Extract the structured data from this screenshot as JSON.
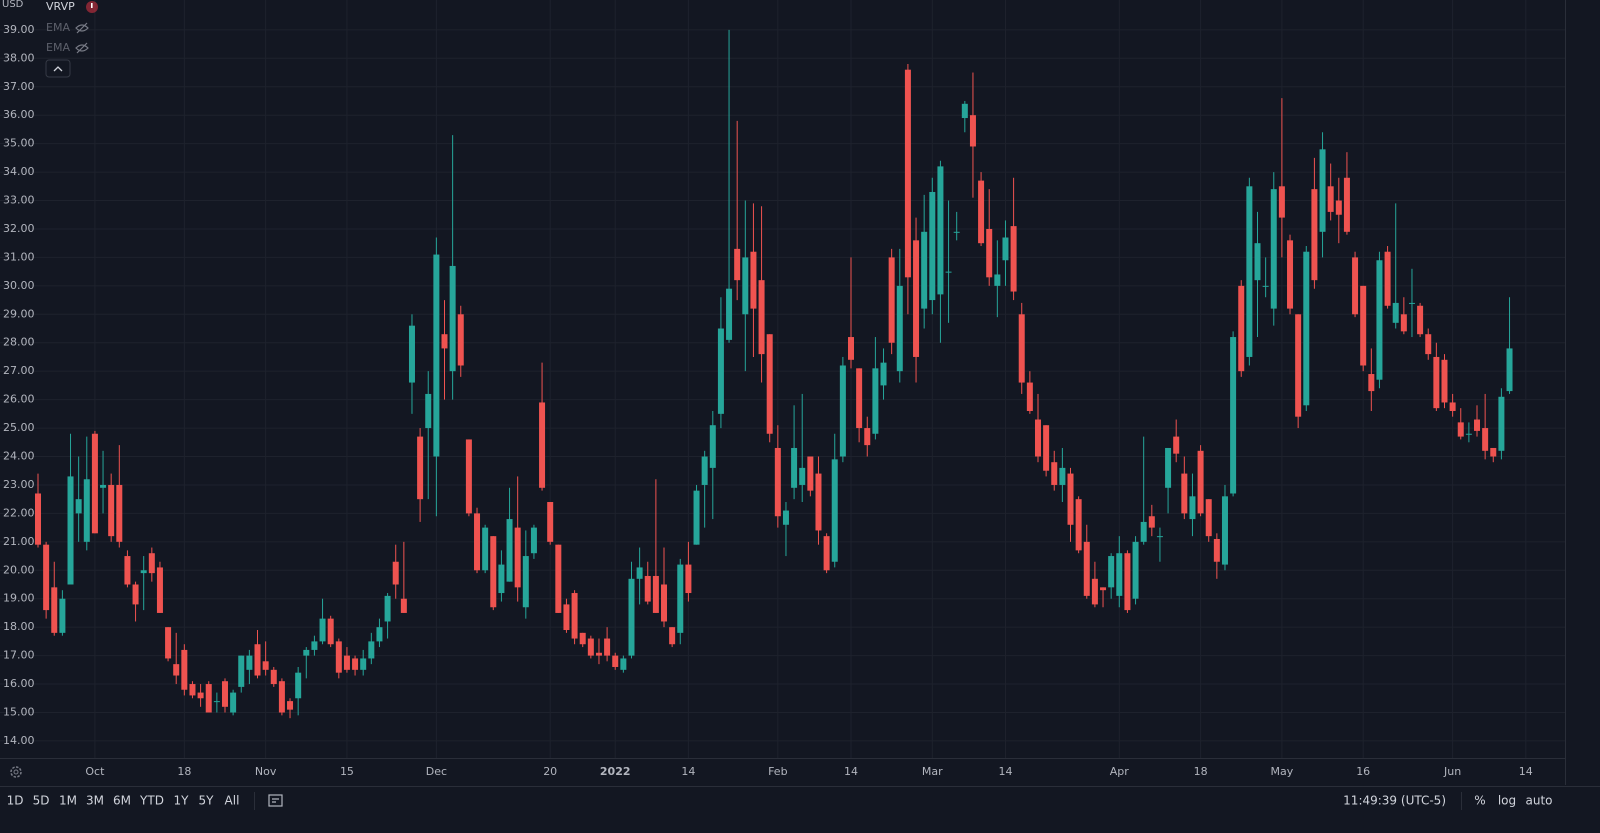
{
  "currency": "USD",
  "indicators": [
    "VRVP",
    "EMA",
    "EMA"
  ],
  "toolbar": {
    "ranges": [
      "1D",
      "5D",
      "1M",
      "3M",
      "6M",
      "YTD",
      "1Y",
      "5Y",
      "All"
    ],
    "clock": "11:49:39 (UTC-5)",
    "scale_buttons": [
      "%",
      "log",
      "auto"
    ]
  },
  "chart_data": {
    "type": "candlestick",
    "up_color": "#26a69a",
    "down_color": "#ef5350",
    "grid": true,
    "ylim": [
      13.4,
      40.05
    ],
    "yticks": [
      {
        "value": 14,
        "label": "14.00"
      },
      {
        "value": 15,
        "label": "15.00"
      },
      {
        "value": 16,
        "label": "16.00"
      },
      {
        "value": 17,
        "label": "17.00"
      },
      {
        "value": 18,
        "label": "18.00"
      },
      {
        "value": 19,
        "label": "19.00"
      },
      {
        "value": 20,
        "label": "20.00"
      },
      {
        "value": 21,
        "label": "21.00"
      },
      {
        "value": 22,
        "label": "22.00"
      },
      {
        "value": 23,
        "label": "23.00"
      },
      {
        "value": 24,
        "label": "24.00"
      },
      {
        "value": 25,
        "label": "25.00"
      },
      {
        "value": 26,
        "label": "26.00"
      },
      {
        "value": 27,
        "label": "27.00"
      },
      {
        "value": 28,
        "label": "28.00"
      },
      {
        "value": 29,
        "label": "29.00"
      },
      {
        "value": 30,
        "label": "30.00"
      },
      {
        "value": 31,
        "label": "31.00"
      },
      {
        "value": 32,
        "label": "32.00"
      },
      {
        "value": 33,
        "label": "33.00"
      },
      {
        "value": 34,
        "label": "34.00"
      },
      {
        "value": 35,
        "label": "35.00"
      },
      {
        "value": 36,
        "label": "36.00"
      },
      {
        "value": 37,
        "label": "37.00"
      },
      {
        "value": 38,
        "label": "38.00"
      },
      {
        "value": 39,
        "label": "39.00"
      }
    ],
    "categories": [
      null,
      null,
      null,
      null,
      null,
      null,
      null,
      "Oct",
      null,
      null,
      null,
      null,
      null,
      null,
      null,
      null,
      null,
      null,
      "18",
      null,
      null,
      null,
      null,
      null,
      null,
      null,
      null,
      null,
      "Nov",
      null,
      null,
      null,
      null,
      null,
      null,
      null,
      null,
      null,
      "15",
      null,
      null,
      null,
      null,
      null,
      null,
      null,
      null,
      null,
      null,
      "Dec",
      null,
      null,
      null,
      null,
      null,
      null,
      null,
      null,
      null,
      null,
      null,
      null,
      null,
      "20",
      null,
      null,
      null,
      null,
      null,
      null,
      null,
      "2022",
      null,
      null,
      null,
      null,
      null,
      null,
      null,
      null,
      "14",
      null,
      null,
      null,
      null,
      null,
      null,
      null,
      null,
      null,
      null,
      "Feb",
      null,
      null,
      null,
      null,
      null,
      null,
      null,
      null,
      "14",
      null,
      null,
      null,
      null,
      null,
      null,
      null,
      null,
      null,
      "Mar",
      null,
      null,
      null,
      null,
      null,
      null,
      null,
      null,
      "14",
      null,
      null,
      null,
      null,
      null,
      null,
      null,
      null,
      null,
      null,
      null,
      null,
      null,
      "Apr",
      null,
      null,
      null,
      null,
      null,
      null,
      null,
      null,
      null,
      "18",
      null,
      null,
      null,
      null,
      null,
      null,
      null,
      null,
      null,
      "May",
      null,
      null,
      null,
      null,
      null,
      null,
      null,
      null,
      null,
      "16",
      null,
      null,
      null,
      null,
      null,
      null,
      null,
      null,
      null,
      null,
      "Jun",
      null,
      null,
      null,
      null,
      null,
      null,
      null,
      null,
      "14"
    ],
    "open": [
      22.7,
      20.9,
      19.4,
      17.8,
      19.5,
      22.0,
      21.0,
      24.8,
      22.9,
      23.0,
      23.0,
      20.5,
      19.5,
      19.9,
      20.6,
      20.1,
      18.0,
      16.7,
      17.2,
      16.0,
      15.7,
      16.0,
      15.4,
      16.1,
      15.0,
      15.9,
      16.5,
      17.4,
      16.8,
      16.5,
      16.1,
      15.4,
      15.5,
      17.0,
      17.2,
      17.5,
      18.3,
      17.5,
      17.0,
      16.9,
      16.5,
      16.9,
      17.5,
      18.2,
      20.3,
      19.0,
      26.6,
      24.7,
      25.0,
      24.0,
      28.3,
      27.0,
      29.0,
      24.6,
      22.0,
      20.0,
      21.2,
      19.2,
      19.6,
      21.5,
      18.7,
      20.6,
      25.9,
      22.4,
      20.9,
      18.8,
      19.2,
      17.8,
      17.6,
      17.1,
      17.6,
      17.0,
      16.5,
      17.0,
      19.7,
      19.8,
      19.8,
      19.5,
      18.0,
      17.8,
      20.2,
      20.9,
      23.0,
      23.6,
      25.5,
      28.1,
      31.3,
      29.0,
      31.2,
      30.2,
      28.3,
      24.3,
      21.6,
      22.9,
      23.0,
      24.0,
      23.4,
      21.2,
      20.3,
      24.0,
      28.2,
      27.1,
      25.0,
      24.8,
      26.5,
      31.0,
      27.0,
      37.6,
      31.6,
      29.2,
      29.5,
      29.7,
      30.5,
      31.9,
      35.9,
      36.0,
      33.7,
      32.0,
      30.0,
      30.9,
      32.1,
      29.0,
      26.6,
      25.3,
      25.1,
      23.8,
      23.0,
      23.4,
      22.5,
      21.0,
      19.7,
      19.4,
      19.4,
      19.1,
      20.6,
      19.0,
      21.0,
      21.9,
      21.2,
      22.9,
      24.7,
      23.4,
      21.8,
      24.2,
      22.5,
      21.1,
      20.2,
      22.7,
      30.0,
      27.5,
      30.2,
      30.0,
      29.2,
      33.5,
      31.6,
      29.0,
      25.8,
      33.4,
      31.9,
      33.5,
      33.0,
      33.8,
      31.0,
      30.0,
      26.9,
      26.7,
      31.2,
      28.7,
      29.0,
      29.4,
      29.3,
      28.3,
      27.5,
      27.4,
      25.9,
      25.2,
      24.8,
      25.3,
      25.0,
      24.3,
      24.2,
      26.3,
      null,
      null
    ],
    "high": [
      23.4,
      21.0,
      20.3,
      19.3,
      24.8,
      24.0,
      24.7,
      24.9,
      24.2,
      23.4,
      24.4,
      20.7,
      19.6,
      20.5,
      20.8,
      20.3,
      18.0,
      17.8,
      17.4,
      16.1,
      16.0,
      16.1,
      15.7,
      16.2,
      15.8,
      17.0,
      17.2,
      17.9,
      17.5,
      16.6,
      16.2,
      15.5,
      16.6,
      17.3,
      17.7,
      19.0,
      18.4,
      17.6,
      17.3,
      17.0,
      17.2,
      17.8,
      18.3,
      19.2,
      20.9,
      21.0,
      29.0,
      25.0,
      27.0,
      31.7,
      29.5,
      35.3,
      29.3,
      24.6,
      22.2,
      21.6,
      21.2,
      20.7,
      22.9,
      23.3,
      21.4,
      21.6,
      27.3,
      22.4,
      20.9,
      19.0,
      19.3,
      17.8,
      17.7,
      17.6,
      18.0,
      17.1,
      17.0,
      20.3,
      20.8,
      20.3,
      23.2,
      20.8,
      18.0,
      20.4,
      21.0,
      23.0,
      24.2,
      25.6,
      29.6,
      39.0,
      35.8,
      33.0,
      32.9,
      32.8,
      28.3,
      25.1,
      22.4,
      25.8,
      26.2,
      24.0,
      24.0,
      21.3,
      24.8,
      27.5,
      31.0,
      27.1,
      25.4,
      28.2,
      27.8,
      31.3,
      31.3,
      37.8,
      32.4,
      33.2,
      33.8,
      34.4,
      33.0,
      32.6,
      36.5,
      37.5,
      34.0,
      33.4,
      31.6,
      32.3,
      33.8,
      29.4,
      27.0,
      26.2,
      25.1,
      24.2,
      24.3,
      23.6,
      22.6,
      21.6,
      20.3,
      19.4,
      20.6,
      21.2,
      20.7,
      21.2,
      24.7,
      22.3,
      21.5,
      24.3,
      25.3,
      24.0,
      23.4,
      24.4,
      22.5,
      21.3,
      23.0,
      28.4,
      30.2,
      33.8,
      32.6,
      31.0,
      34.0,
      36.6,
      31.8,
      29.0,
      31.4,
      34.5,
      35.4,
      34.3,
      33.8,
      34.7,
      31.2,
      30.0,
      27.8,
      31.2,
      31.4,
      32.9,
      29.6,
      30.6,
      29.4,
      28.5,
      28.0,
      27.6,
      26.2,
      25.7,
      25.2,
      25.8,
      26.2,
      24.3,
      26.4,
      29.6,
      null,
      null
    ],
    "low": [
      20.8,
      18.3,
      17.7,
      17.7,
      19.5,
      21.0,
      20.7,
      21.3,
      22.0,
      21.0,
      20.8,
      19.4,
      18.2,
      18.6,
      19.6,
      18.5,
      16.8,
      16.0,
      15.6,
      15.5,
      15.2,
      15.0,
      15.0,
      15.0,
      14.9,
      15.7,
      16.0,
      16.2,
      16.3,
      15.9,
      14.9,
      14.8,
      14.9,
      16.2,
      17.0,
      17.4,
      17.3,
      16.2,
      16.4,
      16.3,
      16.3,
      16.7,
      17.3,
      17.6,
      19.0,
      18.5,
      25.5,
      21.7,
      22.5,
      21.9,
      26.0,
      26.0,
      26.8,
      21.9,
      19.9,
      19.9,
      18.6,
      18.9,
      19.6,
      18.9,
      18.3,
      20.4,
      22.8,
      20.9,
      18.5,
      17.8,
      17.4,
      17.3,
      16.9,
      16.7,
      16.8,
      16.5,
      16.4,
      16.9,
      18.8,
      18.8,
      18.5,
      18.0,
      17.3,
      17.4,
      18.9,
      20.9,
      21.5,
      21.8,
      25.0,
      28.0,
      29.5,
      27.0,
      27.5,
      26.6,
      24.5,
      21.5,
      20.5,
      22.5,
      22.4,
      22.6,
      20.9,
      19.9,
      20.1,
      23.8,
      27.1,
      24.5,
      24.0,
      24.6,
      26.0,
      27.6,
      26.6,
      29.0,
      26.6,
      28.5,
      29.0,
      28.0,
      28.7,
      31.6,
      35.4,
      33.1,
      31.4,
      30.0,
      28.9,
      30.0,
      29.5,
      26.2,
      25.5,
      23.8,
      23.3,
      22.8,
      22.4,
      21.0,
      20.6,
      19.0,
      18.7,
      18.7,
      19.0,
      18.7,
      18.5,
      18.8,
      20.9,
      21.2,
      20.3,
      22.0,
      23.8,
      21.8,
      21.2,
      21.9,
      21.0,
      19.7,
      20.0,
      22.6,
      26.8,
      27.2,
      28.2,
      29.6,
      28.6,
      31.0,
      29.0,
      25.0,
      25.6,
      29.9,
      31.0,
      32.3,
      31.5,
      31.8,
      28.9,
      27.0,
      25.6,
      26.4,
      29.2,
      28.5,
      28.3,
      28.2,
      28.2,
      27.4,
      25.6,
      25.7,
      25.4,
      24.6,
      24.5,
      24.7,
      23.9,
      23.8,
      23.9,
      26.2,
      null,
      null
    ],
    "close": [
      20.9,
      18.6,
      17.8,
      19.0,
      23.3,
      22.5,
      23.2,
      21.3,
      23.0,
      21.2,
      21.0,
      19.5,
      18.8,
      20.0,
      19.9,
      18.5,
      16.9,
      16.3,
      15.8,
      15.6,
      15.5,
      15.0,
      15.4,
      15.2,
      15.7,
      17.0,
      17.0,
      16.3,
      16.5,
      16.0,
      15.0,
      15.1,
      16.4,
      17.2,
      17.5,
      18.3,
      17.4,
      16.4,
      16.5,
      16.5,
      16.9,
      17.5,
      18.0,
      19.1,
      19.5,
      18.5,
      28.6,
      22.5,
      26.2,
      31.1,
      27.8,
      30.7,
      27.2,
      22.0,
      20.0,
      21.5,
      18.7,
      20.2,
      21.8,
      19.4,
      20.5,
      21.5,
      22.9,
      21.0,
      18.5,
      17.9,
      17.6,
      17.4,
      17.0,
      17.0,
      17.0,
      16.6,
      16.9,
      19.7,
      20.1,
      18.9,
      18.5,
      18.2,
      17.4,
      20.2,
      19.2,
      22.8,
      24.0,
      25.1,
      28.5,
      29.9,
      30.2,
      31.0,
      29.2,
      27.6,
      24.8,
      21.9,
      22.1,
      24.3,
      23.6,
      22.8,
      21.4,
      20.0,
      23.9,
      27.2,
      27.4,
      25.0,
      24.4,
      27.1,
      27.3,
      28.0,
      30.0,
      30.3,
      27.5,
      31.9,
      33.3,
      34.2,
      30.5,
      31.9,
      36.4,
      34.9,
      31.5,
      30.3,
      30.4,
      31.7,
      29.8,
      26.6,
      25.6,
      24.0,
      23.5,
      23.0,
      23.6,
      21.6,
      20.7,
      19.1,
      18.8,
      19.3,
      20.5,
      20.6,
      18.6,
      21.0,
      21.7,
      21.5,
      21.2,
      24.3,
      24.1,
      22.0,
      22.6,
      22.0,
      21.2,
      20.3,
      22.6,
      28.2,
      27.0,
      33.5,
      31.5,
      30.0,
      33.4,
      32.4,
      29.2,
      25.4,
      31.2,
      30.2,
      34.8,
      32.6,
      32.5,
      31.9,
      29.0,
      27.2,
      26.3,
      30.9,
      29.3,
      29.4,
      28.4,
      29.4,
      28.3,
      27.6,
      25.7,
      25.9,
      25.6,
      24.7,
      24.8,
      24.9,
      24.2,
      24.0,
      26.1,
      27.8,
      null,
      null
    ]
  }
}
